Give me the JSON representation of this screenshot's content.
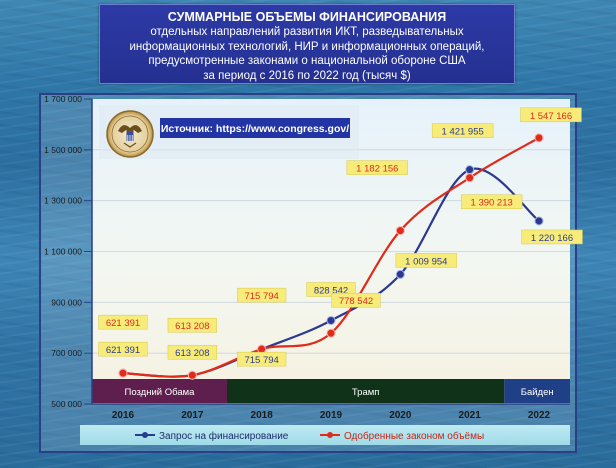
{
  "title": {
    "line1": "СУММАРНЫЕ ОБЪЕМЫ ФИНАНСИРОВАНИЯ",
    "line2": "отдельных направлений развития ИКТ, разведывательных",
    "line3": "информационных технологий, НИР и информационных операций,",
    "line4": "предусмотренные законами о национальной обороне США",
    "line5": "за период с 2016 по 2022 год (тысяч $)"
  },
  "source_label": "Источник: https://www.congress.gov/",
  "chart_data": {
    "type": "line",
    "title": "СУММАРНЫЕ ОБЪЕМЫ ФИНАНСИРОВАНИЯ отдельных направлений развития ИКТ, разведывательных информационных технологий, НИР и информационных операций, предусмотренные законами о национальной обороне США за период с 2016 по 2022 год (тысяч $)",
    "x": [
      "2016",
      "2017",
      "2018",
      "2019",
      "2020",
      "2021",
      "2022"
    ],
    "ylim": [
      500000,
      1700000
    ],
    "yticks": [
      500000,
      700000,
      900000,
      1100000,
      1300000,
      1500000,
      1700000
    ],
    "ytick_labels": [
      "500 000",
      "700 000",
      "900 000",
      "1 100 000",
      "1 300 000",
      "1 500 000",
      "1 700 000"
    ],
    "grid": true,
    "legend_position": "bottom",
    "series": [
      {
        "name": "Запрос на финансирование",
        "color": "#2b3a8f",
        "values": [
          621391,
          613208,
          715794,
          828542,
          1009954,
          1421955,
          1220166
        ],
        "labels": [
          "621 391",
          "613 208",
          "715 794",
          "828 542",
          "1 009 954",
          "1 421 955",
          "1 220 166"
        ]
      },
      {
        "name": "Одобренные законом объёмы",
        "color": "#e02a1a",
        "values": [
          621391,
          613208,
          715794,
          778542,
          1182156,
          1390213,
          1547166
        ],
        "labels": [
          "621 391",
          "613 208",
          "715 794",
          "778 542",
          "1 182 156",
          "1 390 213",
          "1 547 166"
        ]
      }
    ],
    "periods": [
      {
        "label": "Поздний Обама",
        "from": "2016",
        "to": "2017",
        "color": "#5e1f4f"
      },
      {
        "label": "Трамп",
        "from": "2018",
        "to": "2021",
        "color": "#0f3218"
      },
      {
        "label": "Байден",
        "from": "2022",
        "to": "2022",
        "color": "#1f3f86"
      }
    ]
  }
}
